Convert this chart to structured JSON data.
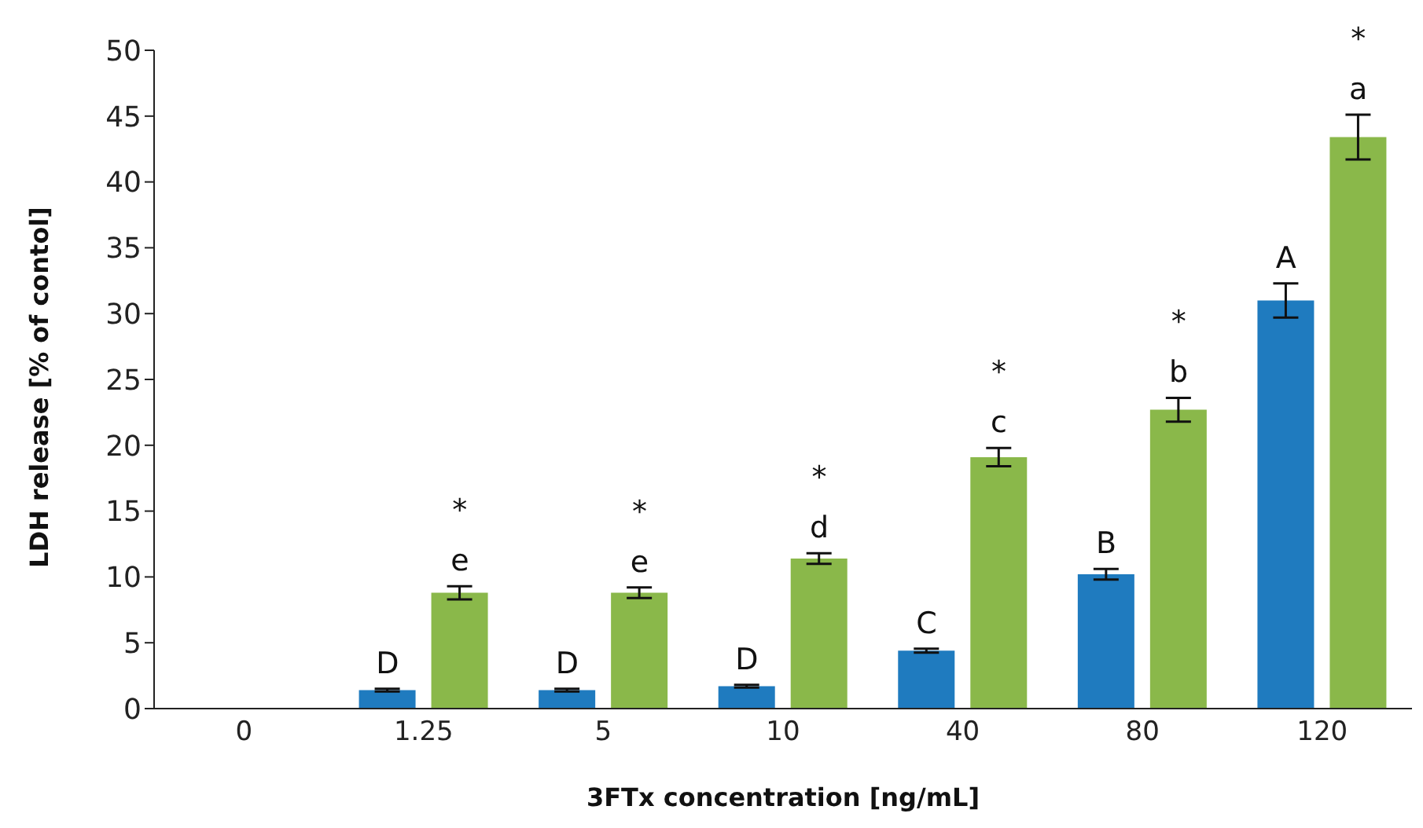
{
  "chart_data": {
    "type": "bar",
    "xlabel": "3FTx concentration [ng/mL]",
    "ylabel": "LDH release [% of contol]",
    "categories": [
      "0",
      "1.25",
      "5",
      "10",
      "40",
      "80",
      "120"
    ],
    "series": [
      {
        "color": "#1f7bbf",
        "values": [
          null,
          1.4,
          1.4,
          1.7,
          4.4,
          10.2,
          31.0
        ],
        "errors": [
          null,
          0.1,
          0.1,
          0.1,
          0.15,
          0.4,
          1.3
        ]
      },
      {
        "color": "#8ab84a",
        "values": [
          null,
          8.8,
          8.8,
          11.4,
          19.1,
          22.7,
          43.4
        ],
        "errors": [
          null,
          0.5,
          0.4,
          0.4,
          0.7,
          0.9,
          1.7
        ]
      }
    ],
    "ylim": [
      0,
      50
    ],
    "yticks": [
      0,
      5,
      10,
      15,
      20,
      25,
      30,
      35,
      40,
      45,
      50
    ],
    "grid": false,
    "legend": false,
    "annotations": [
      {
        "text": "D",
        "x": "1.25",
        "y": 1.4
      },
      {
        "text": "e",
        "x": "1.25",
        "y": 8.8
      },
      {
        "text": "*",
        "x": "1.25",
        "y": 8.8
      },
      {
        "text": "D",
        "x": "5",
        "y": 1.4
      },
      {
        "text": "e",
        "x": "5",
        "y": 8.8
      },
      {
        "text": "*",
        "x": "5",
        "y": 8.8
      },
      {
        "text": "D",
        "x": "10",
        "y": 1.7
      },
      {
        "text": "d",
        "x": "10",
        "y": 11.4
      },
      {
        "text": "*",
        "x": "10",
        "y": 11.4
      },
      {
        "text": "C",
        "x": "40",
        "y": 4.4
      },
      {
        "text": "c",
        "x": "40",
        "y": 19.1
      },
      {
        "text": "*",
        "x": "40",
        "y": 19.1
      },
      {
        "text": "B",
        "x": "80",
        "y": 10.2
      },
      {
        "text": "b",
        "x": "80",
        "y": 22.7
      },
      {
        "text": "*",
        "x": "80",
        "y": 22.7
      },
      {
        "text": "A",
        "x": "120",
        "y": 31.0
      },
      {
        "text": "a",
        "x": "120",
        "y": 43.4
      },
      {
        "text": "*",
        "x": "120",
        "y": 43.4
      }
    ]
  }
}
